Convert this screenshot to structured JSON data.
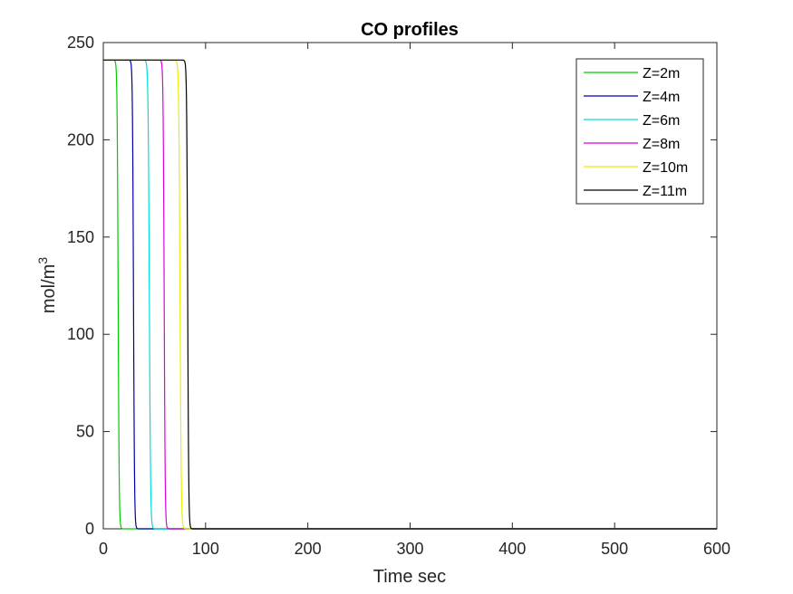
{
  "chart_data": {
    "type": "line",
    "title": "CO profiles",
    "xlabel": "Time sec",
    "ylabel": "mol/m",
    "ylabel_superscript": "3",
    "xlim": [
      0,
      600
    ],
    "ylim": [
      0,
      250
    ],
    "xticks": [
      0,
      100,
      200,
      300,
      400,
      500,
      600
    ],
    "yticks": [
      0,
      50,
      100,
      150,
      200,
      250
    ],
    "grid": false,
    "legend_position": "top-right",
    "plateau_value": 241,
    "series": [
      {
        "name": "Z=2m",
        "color": "#00cc00",
        "drop_start": 12,
        "drop_end": 17
      },
      {
        "name": "Z=4m",
        "color": "#0000aa",
        "drop_start": 27,
        "drop_end": 32
      },
      {
        "name": "Z=6m",
        "color": "#00dddd",
        "drop_start": 42,
        "drop_end": 48
      },
      {
        "name": "Z=8m",
        "color": "#dd00dd",
        "drop_start": 57,
        "drop_end": 62
      },
      {
        "name": "Z=10m",
        "color": "#eeee00",
        "drop_start": 72,
        "drop_end": 78
      },
      {
        "name": "Z=11m",
        "color": "#000000",
        "drop_start": 80,
        "drop_end": 85
      }
    ]
  }
}
